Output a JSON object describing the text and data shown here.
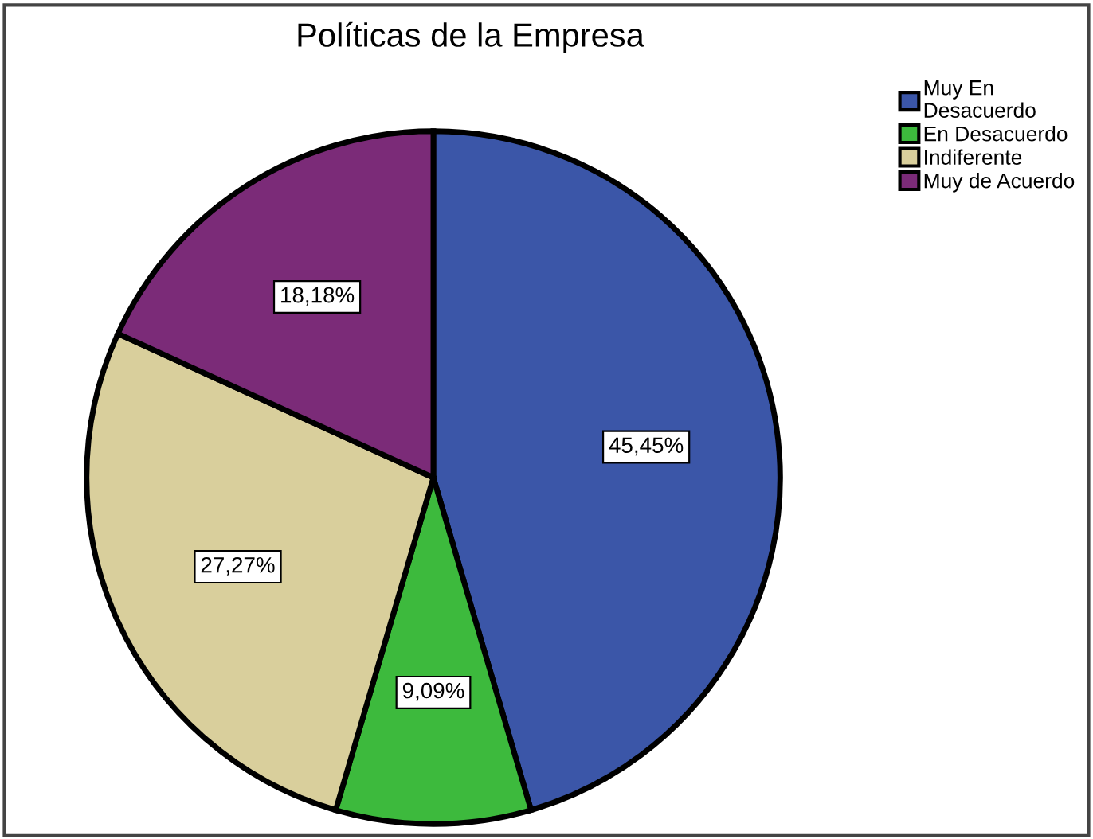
{
  "chart_data": {
    "type": "pie",
    "title": "Políticas de la Empresa",
    "categories": [
      "Muy En\nDesacuerdo",
      "En Desacuerdo",
      "Indiferente",
      "Muy de Acuerdo"
    ],
    "values": [
      45.45,
      9.09,
      27.27,
      18.18
    ],
    "colors": [
      "#3b56a8",
      "#3dba3d",
      "#d9cf9c",
      "#7b2b78"
    ],
    "value_labels": [
      "45,45%",
      "9,09%",
      "27,27%",
      "18,18%"
    ],
    "legend": "top right"
  }
}
